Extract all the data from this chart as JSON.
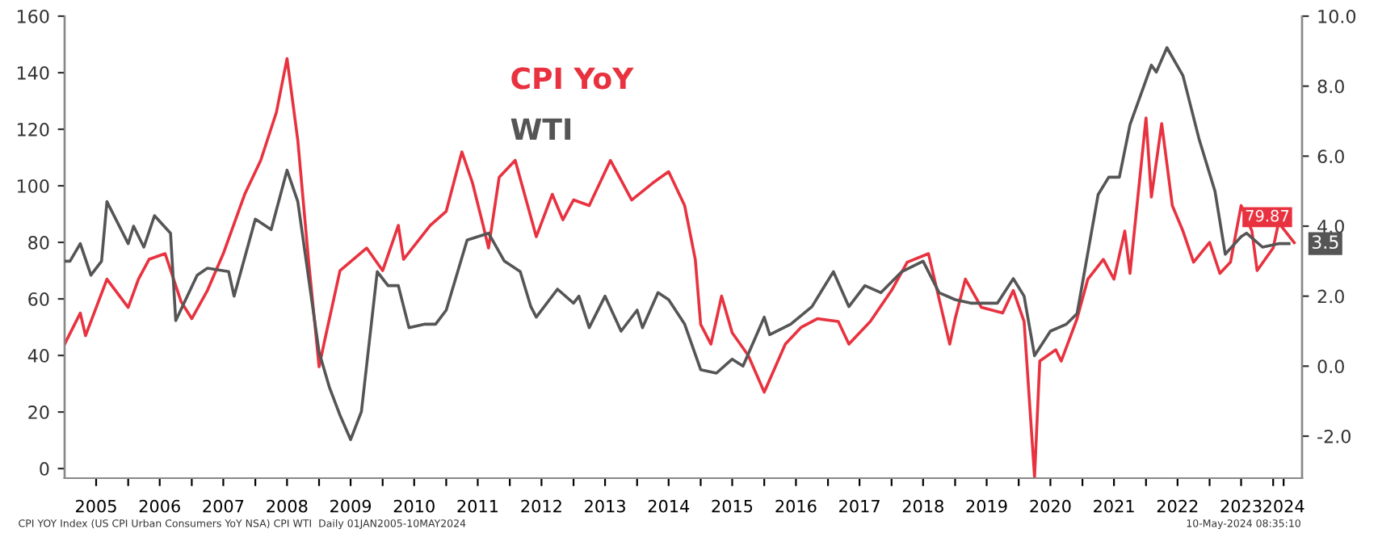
{
  "chart_data": {
    "type": "line",
    "series": [
      {
        "name": "CPI YoY",
        "color": "#e8323f",
        "axis": "y",
        "x": [
          "2005-01",
          "2005-04",
          "2005-05",
          "2005-09",
          "2006-01",
          "2006-03",
          "2006-05",
          "2006-08",
          "2006-11",
          "2007-01",
          "2007-04",
          "2007-07",
          "2007-11",
          "2008-02",
          "2008-05",
          "2008-07",
          "2008-09",
          "2008-11",
          "2009-01",
          "2009-02",
          "2009-05",
          "2009-10",
          "2010-01",
          "2010-04",
          "2010-05",
          "2010-10",
          "2011-01",
          "2011-04",
          "2011-06",
          "2011-08",
          "2011-09",
          "2011-11",
          "2012-02",
          "2012-06",
          "2012-09",
          "2012-11",
          "2013-01",
          "2013-04",
          "2013-08",
          "2013-12",
          "2014-04",
          "2014-07",
          "2014-10",
          "2014-12",
          "2015-01",
          "2015-03",
          "2015-05",
          "2015-07",
          "2015-10",
          "2016-01",
          "2016-05",
          "2016-08",
          "2016-11",
          "2017-03",
          "2017-05",
          "2017-09",
          "2018-01",
          "2018-04",
          "2018-08",
          "2018-12",
          "2019-01",
          "2019-03",
          "2019-06",
          "2019-10",
          "2019-12",
          "2020-02",
          "2020-04",
          "2020-05",
          "2020-08",
          "2020-09",
          "2020-12",
          "2021-02",
          "2021-05",
          "2021-07",
          "2021-09",
          "2021-10",
          "2022-01",
          "2022-02",
          "2022-04",
          "2022-06",
          "2022-08",
          "2022-10",
          "2023-01",
          "2023-03",
          "2023-05",
          "2023-07",
          "2023-09",
          "2023-10",
          "2024-01",
          "2024-02",
          "2024-05"
        ],
        "values": [
          44,
          55,
          47,
          67,
          57,
          67,
          74,
          76,
          59,
          53,
          63,
          76,
          97,
          109,
          126,
          145,
          116,
          74,
          36,
          45,
          70,
          78,
          70,
          86,
          74,
          86,
          91,
          112,
          101,
          86,
          78,
          103,
          109,
          82,
          97,
          88,
          95,
          93,
          109,
          95,
          101,
          105,
          93,
          74,
          51,
          44,
          61,
          48,
          40,
          27,
          44,
          50,
          53,
          52,
          44,
          52,
          63,
          73,
          76,
          44,
          53,
          67,
          57,
          55,
          63,
          52,
          -3,
          38,
          42,
          38,
          53,
          67,
          74,
          67,
          84,
          69,
          124,
          96,
          122,
          93,
          84,
          73,
          80,
          69,
          73,
          93,
          84,
          70,
          78,
          87,
          79.87
        ],
        "value_labels": [
          null,
          null,
          null,
          null,
          null,
          null,
          null,
          null,
          null,
          null,
          null,
          null,
          null,
          null,
          null,
          null,
          null,
          null,
          null,
          null,
          null,
          null,
          null,
          null,
          null,
          null,
          null,
          null,
          null,
          null,
          null,
          null,
          null,
          null,
          null,
          null,
          null,
          null,
          null,
          null,
          null,
          null,
          null,
          null,
          null,
          null,
          null,
          null,
          null,
          null,
          null,
          null,
          null,
          null,
          null,
          null,
          null,
          null,
          null,
          null,
          null,
          null,
          null,
          null,
          null,
          null,
          null,
          null,
          null,
          null,
          null,
          null,
          null,
          null,
          null,
          null,
          null,
          null,
          null,
          null,
          null,
          null,
          null,
          null,
          null,
          null,
          null,
          null,
          null,
          null,
          "79.87"
        ]
      },
      {
        "name": "WTI",
        "color": "#555555",
        "axis": "y2",
        "x": [
          "2005-01",
          "2005-02",
          "2005-04",
          "2005-06",
          "2005-08",
          "2005-09",
          "2006-01",
          "2006-02",
          "2006-04",
          "2006-06",
          "2006-09",
          "2006-10",
          "2007-02",
          "2007-04",
          "2007-08",
          "2007-09",
          "2008-01",
          "2008-04",
          "2008-07",
          "2008-09",
          "2009-01",
          "2009-03",
          "2009-05",
          "2009-07",
          "2009-09",
          "2009-12",
          "2010-02",
          "2010-04",
          "2010-06",
          "2010-09",
          "2010-11",
          "2011-01",
          "2011-05",
          "2011-09",
          "2011-12",
          "2012-03",
          "2012-05",
          "2012-06",
          "2012-10",
          "2013-01",
          "2013-02",
          "2013-04",
          "2013-07",
          "2013-10",
          "2014-01",
          "2014-02",
          "2014-05",
          "2014-07",
          "2014-10",
          "2015-01",
          "2015-04",
          "2015-07",
          "2015-09",
          "2016-01",
          "2016-02",
          "2016-06",
          "2016-10",
          "2017-02",
          "2017-05",
          "2017-08",
          "2017-11",
          "2018-03",
          "2018-07",
          "2018-10",
          "2019-01",
          "2019-04",
          "2019-09",
          "2019-12",
          "2020-02",
          "2020-04",
          "2020-07",
          "2020-10",
          "2020-12",
          "2021-04",
          "2021-06",
          "2021-08",
          "2021-10",
          "2022-02",
          "2022-03",
          "2022-05",
          "2022-08",
          "2022-11",
          "2023-02",
          "2023-04",
          "2023-07",
          "2023-08",
          "2023-11",
          "2024-02",
          "2024-04"
        ],
        "values": [
          3.0,
          3.0,
          3.5,
          2.6,
          3.0,
          4.7,
          3.5,
          4.0,
          3.4,
          4.3,
          3.8,
          1.3,
          2.6,
          2.8,
          2.7,
          2.0,
          4.2,
          3.9,
          5.6,
          4.7,
          0.4,
          -0.6,
          -1.4,
          -2.1,
          -1.3,
          2.7,
          2.3,
          2.3,
          1.1,
          1.2,
          1.2,
          1.6,
          3.6,
          3.8,
          3.0,
          2.7,
          1.7,
          1.4,
          2.2,
          1.8,
          2.0,
          1.1,
          2.0,
          1.0,
          1.6,
          1.1,
          2.1,
          1.9,
          1.2,
          -0.1,
          -0.2,
          0.2,
          0.0,
          1.4,
          0.9,
          1.2,
          1.7,
          2.7,
          1.7,
          2.3,
          2.1,
          2.7,
          3.0,
          2.1,
          1.9,
          1.8,
          1.8,
          2.5,
          2.0,
          0.3,
          1.0,
          1.2,
          1.5,
          4.9,
          5.4,
          5.4,
          6.9,
          8.6,
          8.4,
          9.1,
          8.3,
          6.5,
          5.0,
          3.2,
          3.7,
          3.8,
          3.4,
          3.5,
          3.5
        ],
        "value_labels": [
          null,
          null,
          null,
          null,
          null,
          null,
          null,
          null,
          null,
          null,
          null,
          null,
          null,
          null,
          null,
          null,
          null,
          null,
          null,
          null,
          null,
          null,
          null,
          null,
          null,
          null,
          null,
          null,
          null,
          null,
          null,
          null,
          null,
          null,
          null,
          null,
          null,
          null,
          null,
          null,
          null,
          null,
          null,
          null,
          null,
          null,
          null,
          null,
          null,
          null,
          null,
          null,
          null,
          null,
          null,
          null,
          null,
          null,
          null,
          null,
          null,
          null,
          null,
          null,
          null,
          null,
          null,
          null,
          null,
          null,
          null,
          null,
          null,
          null,
          null,
          null,
          null,
          null,
          null,
          null,
          null,
          null,
          null,
          null,
          null,
          null,
          null,
          null,
          "3.5"
        ]
      }
    ],
    "xlim": [
      "2005-01-01",
      "2024-06-15"
    ],
    "xticks": [
      {
        "value": "2005-07-01",
        "label": "2005"
      },
      {
        "value": "2006-01-01",
        "label": null
      },
      {
        "value": "2006-07-01",
        "label": "2006"
      },
      {
        "value": "2007-01-01",
        "label": null
      },
      {
        "value": "2007-07-01",
        "label": "2007"
      },
      {
        "value": "2008-01-01",
        "label": null
      },
      {
        "value": "2008-07-01",
        "label": "2008"
      },
      {
        "value": "2009-01-01",
        "label": null
      },
      {
        "value": "2009-07-01",
        "label": "2009"
      },
      {
        "value": "2010-01-01",
        "label": null
      },
      {
        "value": "2010-07-01",
        "label": "2010"
      },
      {
        "value": "2011-01-01",
        "label": null
      },
      {
        "value": "2011-07-01",
        "label": "2011"
      },
      {
        "value": "2012-01-01",
        "label": null
      },
      {
        "value": "2012-07-01",
        "label": "2012"
      },
      {
        "value": "2013-01-01",
        "label": null
      },
      {
        "value": "2013-07-01",
        "label": "2013"
      },
      {
        "value": "2014-01-01",
        "label": null
      },
      {
        "value": "2014-07-01",
        "label": "2014"
      },
      {
        "value": "2015-01-01",
        "label": null
      },
      {
        "value": "2015-07-01",
        "label": "2015"
      },
      {
        "value": "2016-01-01",
        "label": null
      },
      {
        "value": "2016-07-01",
        "label": "2016"
      },
      {
        "value": "2017-01-01",
        "label": null
      },
      {
        "value": "2017-07-01",
        "label": "2017"
      },
      {
        "value": "2018-01-01",
        "label": null
      },
      {
        "value": "2018-07-01",
        "label": "2018"
      },
      {
        "value": "2019-01-01",
        "label": null
      },
      {
        "value": "2019-07-01",
        "label": "2019"
      },
      {
        "value": "2020-01-01",
        "label": null
      },
      {
        "value": "2020-07-01",
        "label": "2020"
      },
      {
        "value": "2021-01-01",
        "label": null
      },
      {
        "value": "2021-07-01",
        "label": "2021"
      },
      {
        "value": "2022-01-01",
        "label": null
      },
      {
        "value": "2022-07-01",
        "label": "2022"
      },
      {
        "value": "2023-01-01",
        "label": null
      },
      {
        "value": "2023-07-01",
        "label": "2023"
      },
      {
        "value": "2024-01-01",
        "label": null
      },
      {
        "value": "2024-03-01",
        "label": "2024"
      }
    ],
    "ylim": [
      -3.4,
      160
    ],
    "yticks": [
      0,
      20,
      40,
      60,
      80,
      100,
      120,
      140,
      160
    ],
    "y2lim": [
      -3.2,
      10.0
    ],
    "y2ticks": [
      {
        "value": -2,
        "label": "-2.0"
      },
      {
        "value": 0,
        "label": "0.0"
      },
      {
        "value": 2,
        "label": "2.0"
      },
      {
        "value": 4,
        "label": "4.0"
      },
      {
        "value": 6,
        "label": "6.0"
      },
      {
        "value": 8,
        "label": "8.0"
      },
      {
        "value": 10,
        "label": "10.0"
      }
    ],
    "legend": "top",
    "grid": false,
    "annotations": [
      "CPI YOY Index (US CPI Urban Consumers YoY NSA) CPI WTI  Daily 01JAN2005-10MAY2024",
      "10-May-2024 08:35:10"
    ]
  }
}
